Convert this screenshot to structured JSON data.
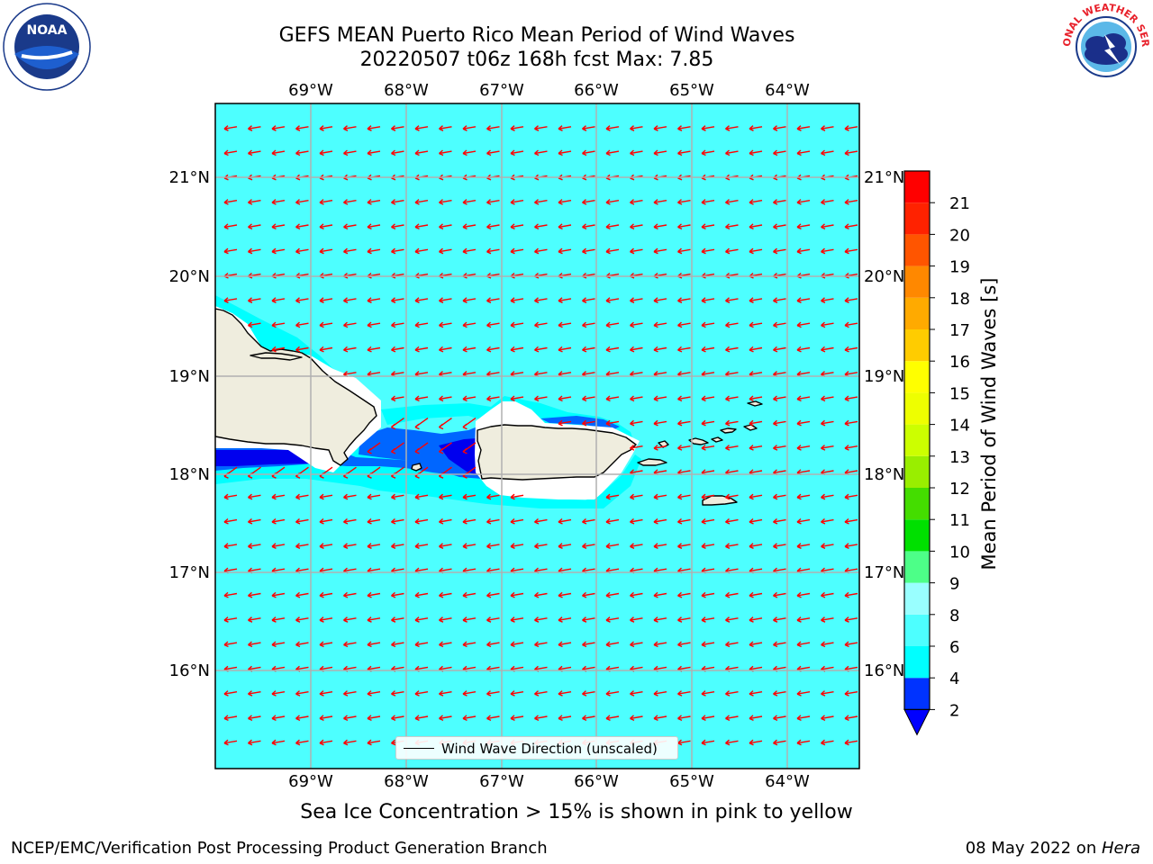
{
  "title_line1": "GEFS MEAN Puerto Rico Mean Period of Wind Waves",
  "title_line2": "20220507 t06z 168h fcst   Max: 7.85",
  "logos": {
    "left": "NOAA",
    "right": "NATIONAL WEATHER SERVICE"
  },
  "map": {
    "lon_labels": [
      "69°W",
      "68°W",
      "67°W",
      "66°W",
      "65°W",
      "64°W"
    ],
    "lat_labels": [
      "21°N",
      "20°N",
      "19°N",
      "18°N",
      "17°N",
      "16°N"
    ],
    "colors": {
      "ocean": "#4dffff",
      "land": "#efedde",
      "arrow": "#ff0000",
      "grid": "#b0b0b0"
    },
    "legend_label": "Wind Wave Direction (unscaled)"
  },
  "colorbar": {
    "title": "Mean Period of Wind Waves [s]",
    "tick_labels": [
      "2",
      "4",
      "6",
      "8",
      "9",
      "10",
      "11",
      "12",
      "13",
      "14",
      "15",
      "16",
      "17",
      "18",
      "19",
      "20",
      "21"
    ],
    "colors": [
      "#0033ff",
      "#00ffff",
      "#4dffff",
      "#99ffff",
      "#4dff88",
      "#00e000",
      "#44dd00",
      "#99ee00",
      "#ccff00",
      "#eeff00",
      "#ffff00",
      "#ffcc00",
      "#ffaa00",
      "#ff8800",
      "#ff5500",
      "#ff2200",
      "#ff0000"
    ],
    "under_color": "#0000ff"
  },
  "caption": "Sea Ice Concentration > 15% is shown in pink to yellow",
  "footer": {
    "left": "NCEP/EMC/Verification Post Processing Product Generation Branch",
    "date": "08 May 2022 on ",
    "machine": "Hera"
  }
}
